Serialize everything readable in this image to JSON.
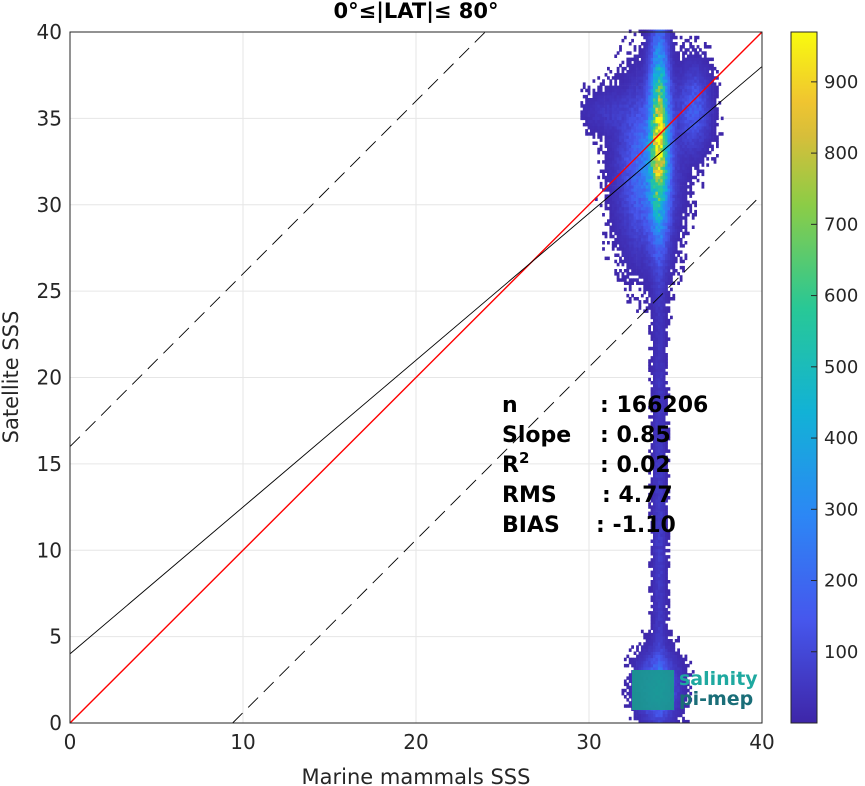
{
  "chart_data": {
    "type": "heatmap",
    "title": "0°≤|LAT|≤ 80°",
    "xlabel": "Marine mammals SSS",
    "ylabel": "Satellite SSS",
    "xlim": [
      0,
      40
    ],
    "ylim": [
      0,
      40
    ],
    "x_ticks": [
      "0",
      "10",
      "20",
      "30",
      "40"
    ],
    "y_ticks": [
      "0",
      "5",
      "10",
      "15",
      "20",
      "25",
      "30",
      "35",
      "40"
    ],
    "grid": true,
    "colorbar": {
      "range": [
        0,
        970
      ],
      "ticks": [
        "100",
        "200",
        "300",
        "400",
        "500",
        "600",
        "700",
        "800",
        "900"
      ],
      "colormap": "parula"
    },
    "density_clusters": [
      {
        "x": 34.0,
        "y": 34.0,
        "sx": 0.35,
        "sy": 3.5,
        "peak": 950
      },
      {
        "x": 33.3,
        "y": 32.0,
        "sx": 1.0,
        "sy": 2.8,
        "peak": 300
      },
      {
        "x": 36.0,
        "y": 35.5,
        "sx": 0.6,
        "sy": 1.5,
        "peak": 200
      },
      {
        "x": 34.0,
        "y": 12.0,
        "sx": 0.25,
        "sy": 10.0,
        "peak": 80
      },
      {
        "x": 33.9,
        "y": 2.0,
        "sx": 0.7,
        "sy": 1.2,
        "peak": 300
      },
      {
        "x": 31.0,
        "y": 35.3,
        "sx": 1.0,
        "sy": 0.8,
        "peak": 60
      }
    ],
    "lines": {
      "identity": {
        "slope": 1.0,
        "intercept": 0.0,
        "color": "#ff0000"
      },
      "fit": {
        "slope": 0.85,
        "intercept": 4.0,
        "color": "#000000"
      },
      "upper_bound": {
        "slope": 1.0,
        "intercept": 16.0,
        "color": "#000000",
        "style": "dashed"
      },
      "lower_bound": {
        "slope": 1.0,
        "intercept": -9.4,
        "color": "#000000",
        "style": "dashed"
      }
    },
    "stats": [
      {
        "label": "n",
        "value": ": 166206"
      },
      {
        "label": "Slope",
        "value": ": 0.85"
      },
      {
        "label": "R",
        "sup": "2",
        "value": ": 0.02"
      },
      {
        "label": "RMS",
        "value": ": 4.77"
      },
      {
        "label": "BIAS",
        "value": ": -1.10"
      }
    ]
  },
  "logo": {
    "line1": "salinity",
    "line2": "pi-mep"
  }
}
